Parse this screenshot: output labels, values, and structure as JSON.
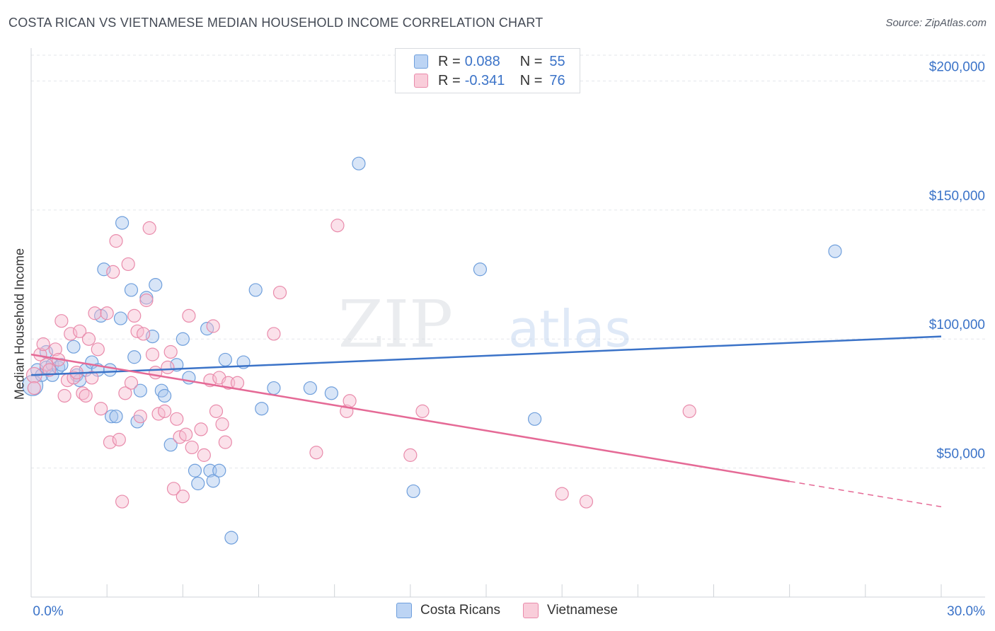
{
  "header": {
    "title": "COSTA RICAN VS VIETNAMESE MEDIAN HOUSEHOLD INCOME CORRELATION CHART",
    "source": "Source: ZipAtlas.com"
  },
  "watermark": {
    "zip": "ZIP",
    "atlas": "atlas"
  },
  "legend": {
    "rows": [
      {
        "r_label": "R =",
        "r_value": "0.088",
        "n_label": "N =",
        "n_value": "55"
      },
      {
        "r_label": "R =",
        "r_value": "-0.341",
        "n_label": "N =",
        "n_value": "76"
      }
    ]
  },
  "bottom_legend": {
    "items": [
      {
        "label": "Costa Ricans"
      },
      {
        "label": "Vietnamese"
      }
    ]
  },
  "colors": {
    "blue_fill": "#a9c6ee",
    "blue_stroke": "#6f9fdc",
    "blue_line": "#3b73c8",
    "pink_fill": "#f6bcd0",
    "pink_stroke": "#e98bab",
    "pink_line": "#e56a96",
    "tick_label": "#3b73c8",
    "grid": "#e3e6ea"
  },
  "chart_data": {
    "type": "scatter",
    "title": "COSTA RICAN VS VIETNAMESE MEDIAN HOUSEHOLD INCOME CORRELATION CHART",
    "xlabel": "",
    "ylabel": "Median Household Income",
    "xlim": [
      0,
      30
    ],
    "ylim": [
      0,
      210000
    ],
    "x_tick_labels": [
      "0.0%",
      "30.0%"
    ],
    "y_ticks": [
      50000,
      100000,
      150000,
      200000
    ],
    "y_tick_labels": [
      "$50,000",
      "$100,000",
      "$150,000",
      "$200,000"
    ],
    "grid": true,
    "legend_position": "top-center",
    "series": [
      {
        "name": "Costa Ricans",
        "r": 0.088,
        "n": 55,
        "trend": {
          "x0": 0,
          "y0": 86000,
          "x1": 30,
          "y1": 101000,
          "dashed_from": null
        },
        "points": [
          [
            0.05,
            82000,
            1.6
          ],
          [
            0.2,
            88000,
            1
          ],
          [
            0.35,
            86000,
            1
          ],
          [
            0.5,
            89000,
            1
          ],
          [
            0.5,
            95000,
            1
          ],
          [
            0.7,
            90000,
            1
          ],
          [
            0.7,
            86000,
            1
          ],
          [
            0.9,
            89000,
            1
          ],
          [
            1.0,
            90000,
            1
          ],
          [
            1.4,
            97000,
            1
          ],
          [
            1.5,
            86000,
            1
          ],
          [
            1.6,
            84000,
            1
          ],
          [
            1.8,
            88000,
            1
          ],
          [
            2.0,
            91000,
            1
          ],
          [
            2.2,
            88000,
            1
          ],
          [
            2.3,
            109000,
            1
          ],
          [
            2.4,
            127000,
            1
          ],
          [
            2.6,
            88000,
            1
          ],
          [
            2.65,
            70000,
            1
          ],
          [
            2.8,
            70000,
            1
          ],
          [
            2.95,
            108000,
            1
          ],
          [
            3.0,
            145000,
            1
          ],
          [
            3.3,
            119000,
            1
          ],
          [
            3.4,
            93000,
            1
          ],
          [
            3.5,
            68000,
            1
          ],
          [
            3.6,
            80000,
            1
          ],
          [
            3.8,
            116000,
            1
          ],
          [
            4.0,
            101000,
            1
          ],
          [
            4.1,
            121000,
            1
          ],
          [
            4.3,
            80000,
            1
          ],
          [
            4.4,
            78000,
            1
          ],
          [
            4.6,
            59000,
            1
          ],
          [
            4.8,
            90000,
            1
          ],
          [
            5.0,
            100000,
            1
          ],
          [
            5.2,
            85000,
            1
          ],
          [
            5.4,
            49000,
            1
          ],
          [
            5.5,
            44000,
            1
          ],
          [
            5.8,
            104000,
            1
          ],
          [
            5.9,
            49000,
            1
          ],
          [
            6.0,
            45000,
            1
          ],
          [
            6.2,
            49000,
            1
          ],
          [
            6.4,
            92000,
            1
          ],
          [
            6.6,
            23000,
            1
          ],
          [
            7.0,
            91000,
            1
          ],
          [
            7.4,
            119000,
            1
          ],
          [
            7.6,
            73000,
            1
          ],
          [
            8.0,
            81000,
            1
          ],
          [
            9.2,
            81000,
            1
          ],
          [
            9.9,
            79000,
            1
          ],
          [
            10.8,
            168000,
            1
          ],
          [
            12.6,
            41000,
            1
          ],
          [
            14.8,
            127000,
            1
          ],
          [
            16.6,
            69000,
            1
          ],
          [
            26.5,
            134000,
            1
          ]
        ]
      },
      {
        "name": "Vietnamese",
        "r": -0.341,
        "n": 76,
        "trend": {
          "x0": 0,
          "y0": 94000,
          "x1": 30,
          "y1": 35000,
          "dashed_from": 25
        },
        "points": [
          [
            0.1,
            86000,
            1.2
          ],
          [
            0.1,
            81000,
            1
          ],
          [
            0.3,
            94000,
            1
          ],
          [
            0.4,
            98000,
            1
          ],
          [
            0.5,
            90000,
            1
          ],
          [
            0.6,
            88000,
            1
          ],
          [
            0.8,
            96000,
            1
          ],
          [
            0.9,
            92000,
            1
          ],
          [
            1.0,
            107000,
            1
          ],
          [
            1.1,
            78000,
            1
          ],
          [
            1.2,
            84000,
            1
          ],
          [
            1.3,
            102000,
            1
          ],
          [
            1.4,
            85000,
            1
          ],
          [
            1.5,
            87000,
            1
          ],
          [
            1.6,
            103000,
            1
          ],
          [
            1.7,
            79000,
            1
          ],
          [
            1.8,
            78000,
            1
          ],
          [
            1.9,
            100000,
            1
          ],
          [
            2.0,
            85000,
            1
          ],
          [
            2.1,
            110000,
            1
          ],
          [
            2.2,
            96000,
            1
          ],
          [
            2.3,
            73000,
            1
          ],
          [
            2.5,
            110000,
            1
          ],
          [
            2.6,
            60000,
            1
          ],
          [
            2.7,
            126000,
            1
          ],
          [
            2.8,
            138000,
            1
          ],
          [
            2.9,
            61000,
            1
          ],
          [
            3.0,
            37000,
            1
          ],
          [
            3.1,
            79000,
            1
          ],
          [
            3.2,
            129000,
            1
          ],
          [
            3.3,
            83000,
            1
          ],
          [
            3.4,
            109000,
            1
          ],
          [
            3.5,
            103000,
            1
          ],
          [
            3.6,
            70000,
            1
          ],
          [
            3.7,
            102000,
            1
          ],
          [
            3.8,
            115000,
            1
          ],
          [
            3.9,
            143000,
            1
          ],
          [
            4.0,
            94000,
            1
          ],
          [
            4.1,
            87000,
            1
          ],
          [
            4.2,
            71000,
            1
          ],
          [
            4.4,
            72000,
            1
          ],
          [
            4.5,
            89000,
            1
          ],
          [
            4.6,
            95000,
            1
          ],
          [
            4.7,
            42000,
            1
          ],
          [
            4.8,
            69000,
            1
          ],
          [
            4.9,
            62000,
            1
          ],
          [
            5.0,
            39000,
            1
          ],
          [
            5.1,
            63000,
            1
          ],
          [
            5.2,
            109000,
            1
          ],
          [
            5.3,
            58000,
            1
          ],
          [
            5.6,
            65000,
            1
          ],
          [
            5.7,
            55000,
            1
          ],
          [
            5.9,
            84000,
            1
          ],
          [
            6.0,
            105000,
            1
          ],
          [
            6.1,
            72000,
            1
          ],
          [
            6.2,
            85000,
            1
          ],
          [
            6.3,
            67000,
            1
          ],
          [
            6.4,
            60000,
            1
          ],
          [
            6.5,
            83000,
            1
          ],
          [
            6.8,
            83000,
            1
          ],
          [
            8.0,
            102000,
            1
          ],
          [
            8.2,
            118000,
            1
          ],
          [
            9.4,
            56000,
            1
          ],
          [
            10.1,
            144000,
            1
          ],
          [
            10.4,
            72000,
            1
          ],
          [
            10.5,
            76000,
            1
          ],
          [
            12.5,
            55000,
            1
          ],
          [
            12.9,
            72000,
            1
          ],
          [
            17.5,
            40000,
            1
          ],
          [
            18.3,
            37000,
            1
          ],
          [
            21.7,
            72000,
            1
          ]
        ]
      }
    ]
  }
}
